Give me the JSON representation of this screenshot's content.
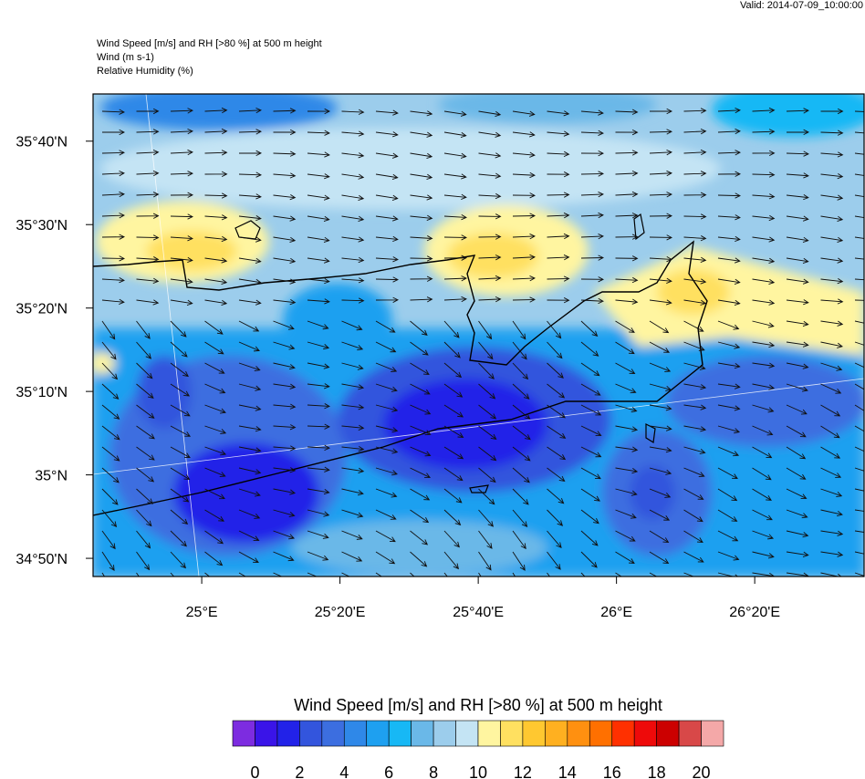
{
  "header": {
    "valid": "Valid: 2014-07-09_10:00:00",
    "lines": [
      "Wind Speed [m/s] and RH [>80 %] at 500 m height",
      "Wind   (m s-1)",
      "Relative Humidity   (%)"
    ]
  },
  "map": {
    "xlim": [
      24.738,
      26.597
    ],
    "ylim": [
      34.797,
      35.761
    ],
    "xticks": [
      {
        "value": 25,
        "label": "25°E"
      },
      {
        "value": 25.3333,
        "label": "25°20'E"
      },
      {
        "value": 25.6667,
        "label": "25°40'E"
      },
      {
        "value": 26,
        "label": "26°E"
      },
      {
        "value": 26.3333,
        "label": "26°20'E"
      }
    ],
    "yticks": [
      {
        "value": 34.8333,
        "label": "34°50'N"
      },
      {
        "value": 35,
        "label": "35°N"
      },
      {
        "value": 35.1667,
        "label": "35°10'N"
      },
      {
        "value": 35.3333,
        "label": "35°20'N"
      },
      {
        "value": 35.5,
        "label": "35°30'N"
      },
      {
        "value": 35.6667,
        "label": "35°40'N"
      }
    ]
  },
  "colorbar": {
    "title": "Wind Speed [m/s] and RH [>80 %] at 500 m height",
    "clim": [
      -1,
      21
    ],
    "colors": [
      "#7d2ce0",
      "#3a14e8",
      "#2222e8",
      "#3355dd",
      "#3c6ee0",
      "#2f88e8",
      "#1ea0f0",
      "#17b8f5",
      "#6ab8e8",
      "#9ccdec",
      "#c4e4f4",
      "#fff5a0",
      "#ffe060",
      "#ffc830",
      "#ffb020",
      "#ff9010",
      "#ff7000",
      "#ff3000",
      "#ee0a0a",
      "#cc0000",
      "#d84848",
      "#f4a8a8"
    ],
    "ticks": [
      0,
      2,
      4,
      6,
      8,
      10,
      12,
      14,
      16,
      18,
      20
    ]
  }
}
